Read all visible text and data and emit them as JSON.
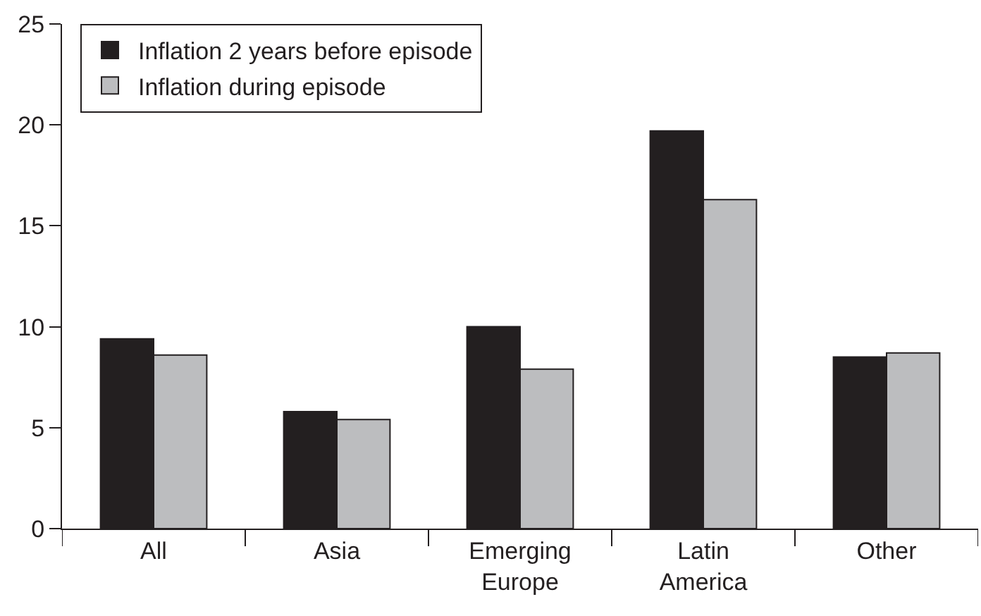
{
  "chart_data": {
    "type": "bar",
    "categories": [
      "All",
      "Asia",
      "Emerging\nEurope",
      "Latin\nAmerica",
      "Other"
    ],
    "series": [
      {
        "name": "Inflation 2 years before episode",
        "color": "#231f20",
        "values": [
          9.4,
          5.8,
          10.0,
          19.7,
          8.5
        ]
      },
      {
        "name": "Inflation during episode",
        "color": "#bcbdbf",
        "values": [
          8.6,
          5.4,
          7.9,
          16.3,
          8.7
        ]
      }
    ],
    "ylim": [
      0,
      25
    ],
    "yticks": [
      0,
      5,
      10,
      15,
      20,
      25
    ],
    "legend": "top left"
  }
}
